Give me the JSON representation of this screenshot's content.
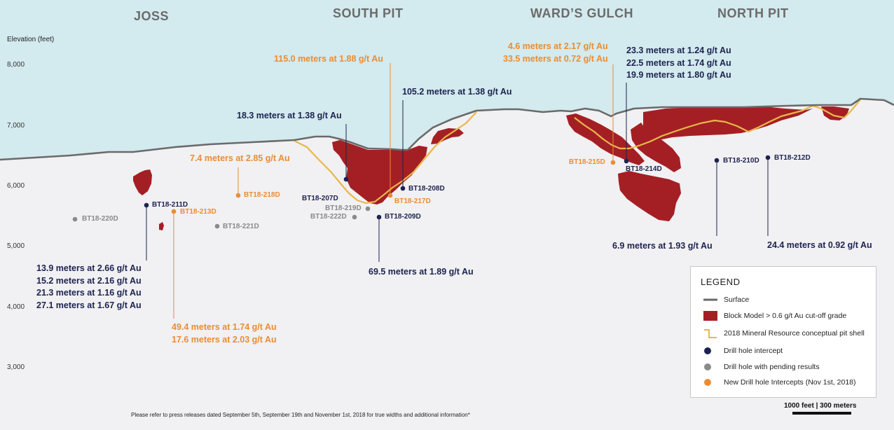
{
  "areas": [
    "JOSS",
    "SOUTH PIT",
    "WARD’S GULCH",
    "NORTH PIT"
  ],
  "y_axis": {
    "label": "Elevation (feet)",
    "ticks": [
      "8,000",
      "7,000",
      "6,000",
      "5,000",
      "4,000",
      "3,000"
    ]
  },
  "intercepts": {
    "joss_211d": [
      "13.9 meters at 2.66 g/t Au",
      "15.2 meters at 2.16 g/t Au",
      "21.3 meters at 1.16 g/t Au",
      "27.1 meters at 1.67 g/t Au"
    ],
    "joss_213d": [
      "49.4 meters at 1.74 g/t Au",
      "17.6 meters at 2.03 g/t Au"
    ],
    "joss_218d": [
      "7.4 meters at 2.85 g/t Au"
    ],
    "south_207d": [
      "18.3 meters at 1.38 g/t Au"
    ],
    "south_217d": [
      "115.0 meters at 1.88 g/t Au"
    ],
    "south_208d": [
      "105.2 meters at 1.38 g/t Au"
    ],
    "south_209d": [
      "69.5 meters at 1.89 g/t Au"
    ],
    "wards_215d": [
      "4.6 meters at 2.17 g/t Au",
      "33.5 meters at 0.72 g/t Au"
    ],
    "wards_214d": [
      "23.3 meters at 1.24 g/t Au",
      "22.5 meters at 1.74 g/t Au",
      "19.9 meters at 1.80 g/t Au"
    ],
    "north_210d": [
      "6.9 meters at 1.93 g/t Au"
    ],
    "north_212d": [
      "24.4 meters at 0.92 g/t Au"
    ]
  },
  "holes": {
    "h220": "BT18-220D",
    "h211": "BT18-211D",
    "h213": "BT18-213D",
    "h221": "BT18-221D",
    "h218": "BT18-218D",
    "h207": "BT18-207D",
    "h219": "BT18-219D",
    "h222": "BT18-222D",
    "h209": "BT18-209D",
    "h208": "BT18-208D",
    "h217": "BT18-217D",
    "h215": "BT18-215D",
    "h214": "BT18-214D",
    "h210": "BT18-210D",
    "h212": "BT18-212D"
  },
  "legend": {
    "title": "LEGEND",
    "items": [
      "Surface",
      "Block Model  > 0.6 g/t Au cut-off grade",
      "2018 Mineral Resource conceptual pit shell",
      "Drill hole intercept",
      "Drill hole with pending results",
      "New Drill hole Intercepts (Nov 1st, 2018)"
    ]
  },
  "footnote": "Please refer to press releases dated September 5th,  September 19th and November 1st, 2018 for true widths and additional information*",
  "scale_label": "1000 feet | 300 meters",
  "colors": {
    "sky": "#d3eaee",
    "ground": "#f1f0f2",
    "surface": "#6a6a6a",
    "block": "#a41f24",
    "pit_shell": "#e8b84a",
    "navy": "#1c2350",
    "orange": "#e98d34",
    "grey": "#8a8a8a"
  }
}
